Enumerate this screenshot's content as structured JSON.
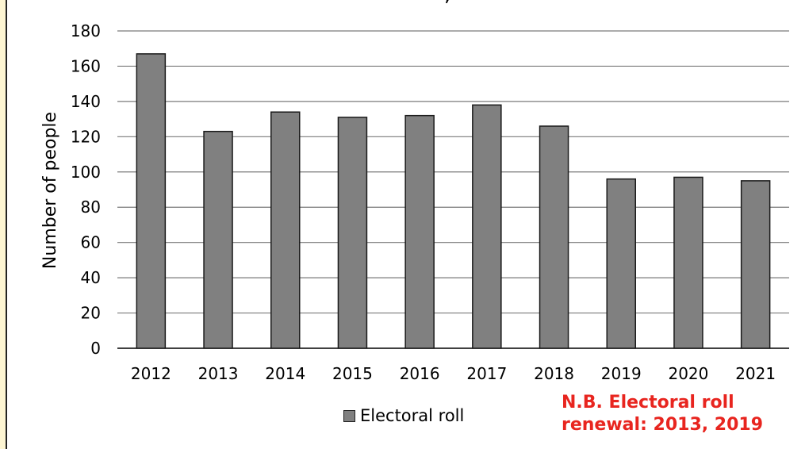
{
  "chart_data": {
    "type": "bar",
    "title": "",
    "xlabel": "",
    "ylabel": "Number of people",
    "ylim": [
      0,
      180
    ],
    "yticks": [
      0,
      20,
      40,
      60,
      80,
      100,
      120,
      140,
      160,
      180
    ],
    "grid": true,
    "categories": [
      "2012",
      "2013",
      "2014",
      "2015",
      "2016",
      "2017",
      "2018",
      "2019",
      "2020",
      "2021"
    ],
    "series": [
      {
        "name": "Electoral roll",
        "values": [
          167,
          123,
          134,
          131,
          132,
          138,
          126,
          96,
          97,
          95
        ],
        "color": "#808080"
      }
    ],
    "legend_position": "bottom",
    "annotation": {
      "line1": "N.B. Electoral roll",
      "line2": "renewal: 2013, 2019",
      "color": "#e8251f"
    }
  },
  "top_fragment": ","
}
